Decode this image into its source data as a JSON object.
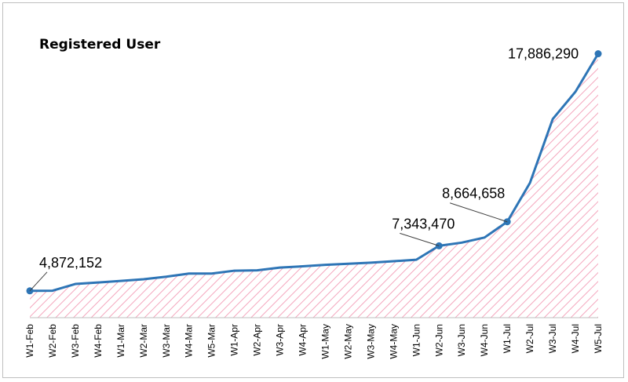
{
  "chart_data": {
    "type": "area",
    "title": "Registered User",
    "xlabel": "",
    "ylabel": "",
    "ylim": [
      3400000,
      19200000
    ],
    "grid": false,
    "legend": "none",
    "line_color": "#2e75b6",
    "fill_hatch_color": "#f4a6bd",
    "categories": [
      "W1-Feb",
      "W2-Feb",
      "W3-Feb",
      "W4-Feb",
      "W1-Mar",
      "W2-Mar",
      "W3-Mar",
      "W4-Mar",
      "W5-Mar",
      "W1-Apr",
      "W2-Apr",
      "W3-Apr",
      "W4-Apr",
      "W1-May",
      "W2-May",
      "W3-May",
      "W4-May",
      "W1-Jun",
      "W2-Jun",
      "W3-Jun",
      "W4-Jun",
      "W1-Jul",
      "W2-Jul",
      "W3-Jul",
      "W4-Jul",
      "W5-Jul"
    ],
    "values": [
      4872152,
      4880000,
      5250000,
      5330000,
      5420000,
      5510000,
      5650000,
      5820000,
      5820000,
      5980000,
      6000000,
      6150000,
      6220000,
      6300000,
      6360000,
      6420000,
      6500000,
      6580000,
      7343470,
      7520000,
      7800000,
      8664658,
      10800000,
      14300000,
      15800000,
      17886290
    ],
    "annotations": [
      {
        "index": 0,
        "text": "4,872,152"
      },
      {
        "index": 18,
        "text": "7,343,470"
      },
      {
        "index": 21,
        "text": "8,664,658"
      },
      {
        "index": 25,
        "text": "17,886,290"
      }
    ]
  }
}
